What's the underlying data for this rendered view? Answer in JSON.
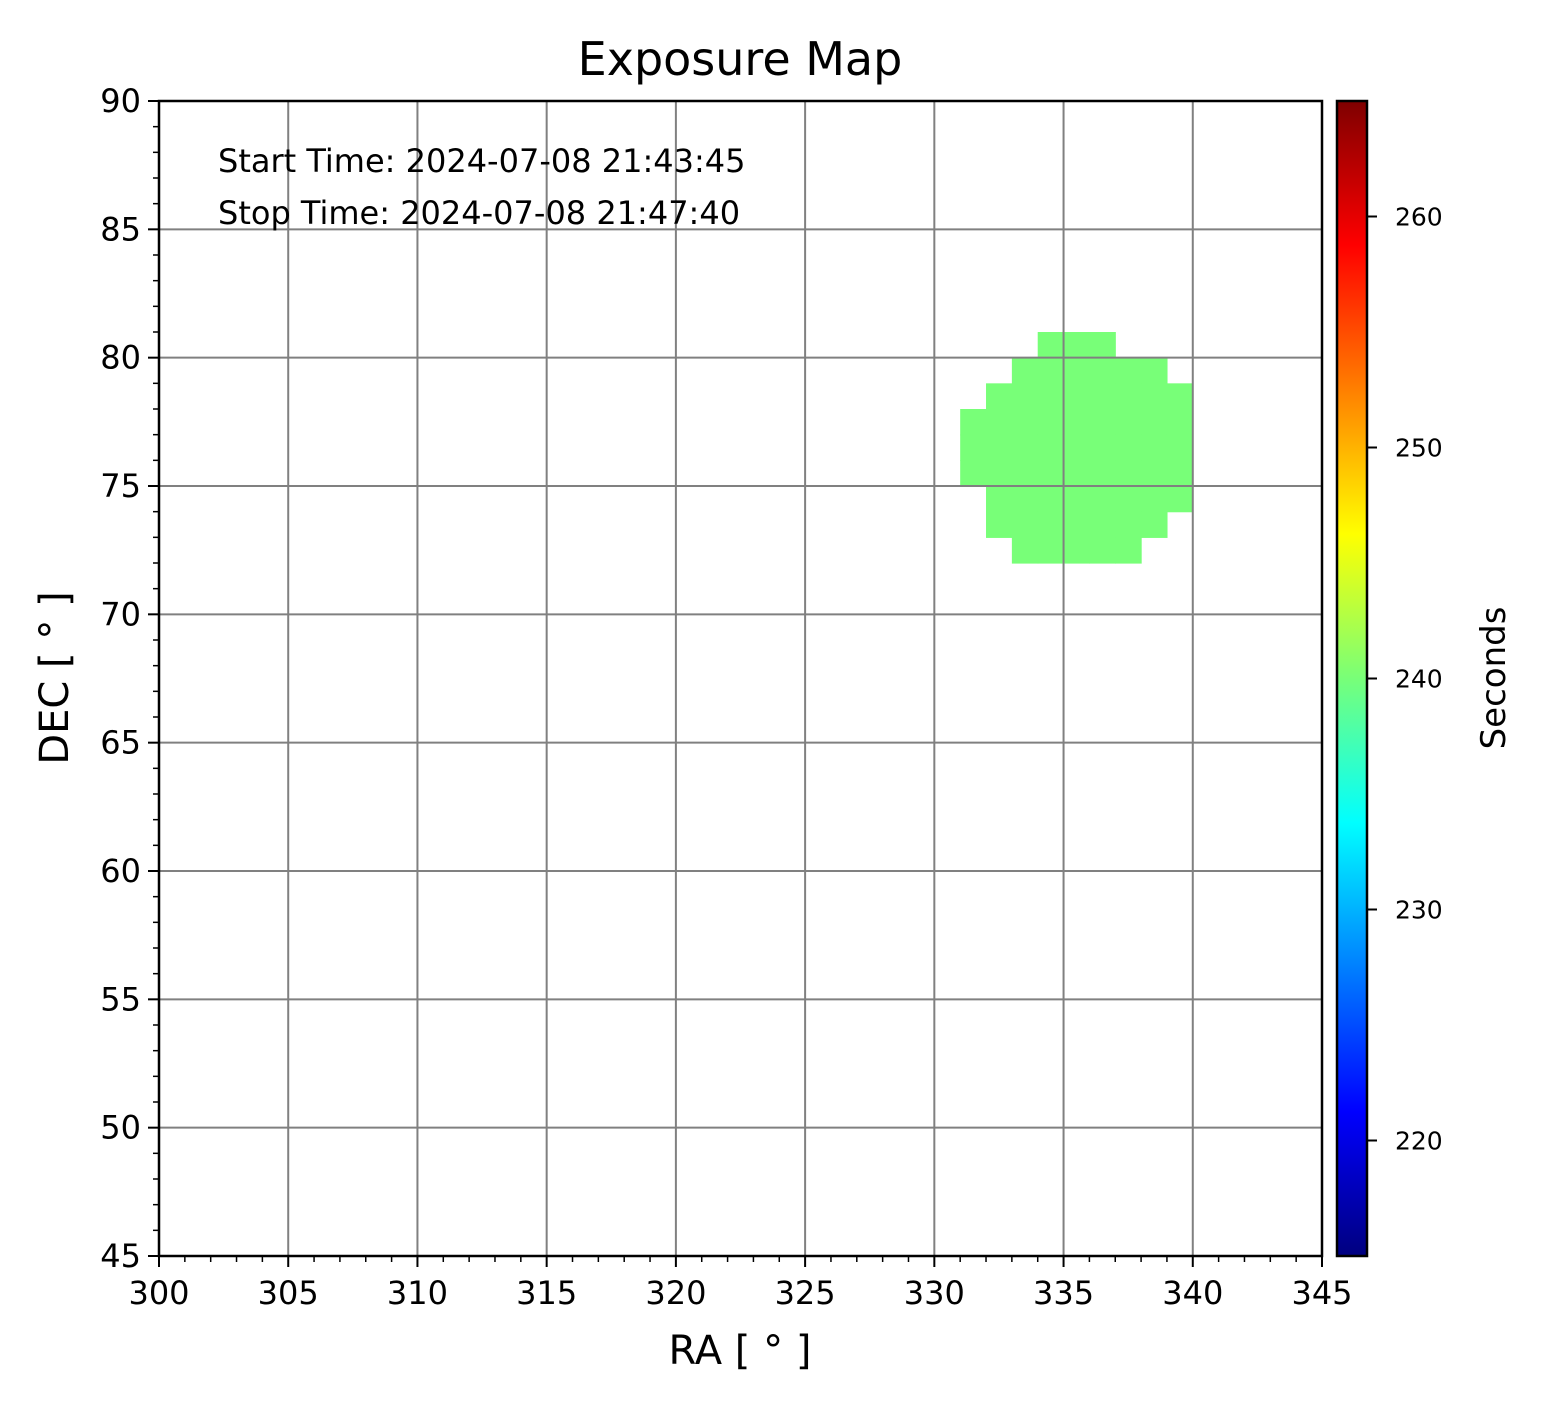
{
  "chart_data": {
    "type": "heatmap",
    "title": "Exposure Map",
    "xlabel": "RA [$^\\circ$]",
    "xlabel_display": "RA [ ° ]",
    "ylabel_display": "DEC [ ° ]",
    "xlim": [
      300,
      345
    ],
    "ylim": [
      45,
      90
    ],
    "xticks": [
      300,
      305,
      310,
      315,
      320,
      325,
      330,
      335,
      340,
      345
    ],
    "yticks": [
      45,
      50,
      55,
      60,
      65,
      70,
      75,
      80,
      85,
      90
    ],
    "grid": true,
    "annotations": [
      "Start Time: 2024-07-08 21:43:45",
      "Stop Time: 2024-07-08 21:47:40"
    ],
    "cell_size_deg": 1,
    "exposure_value": 240,
    "cells_by_row": [
      {
        "dec": 80,
        "ra_from": 334,
        "ra_to": 337
      },
      {
        "dec": 79,
        "ra_from": 333,
        "ra_to": 339
      },
      {
        "dec": 78,
        "ra_from": 332,
        "ra_to": 340
      },
      {
        "dec": 77,
        "ra_from": 331,
        "ra_to": 340
      },
      {
        "dec": 76,
        "ra_from": 331,
        "ra_to": 340
      },
      {
        "dec": 75,
        "ra_from": 331,
        "ra_to": 340
      },
      {
        "dec": 74,
        "ra_from": 332,
        "ra_to": 340
      },
      {
        "dec": 73,
        "ra_from": 332,
        "ra_to": 339
      },
      {
        "dec": 72,
        "ra_from": 333,
        "ra_to": 338
      }
    ],
    "colorbar": {
      "label": "Seconds",
      "range": [
        215,
        265
      ],
      "ticks": [
        220,
        230,
        240,
        250,
        260
      ],
      "colormap": "jet"
    }
  },
  "colors": {
    "cell": "#78ff78",
    "grid": "#808080"
  }
}
